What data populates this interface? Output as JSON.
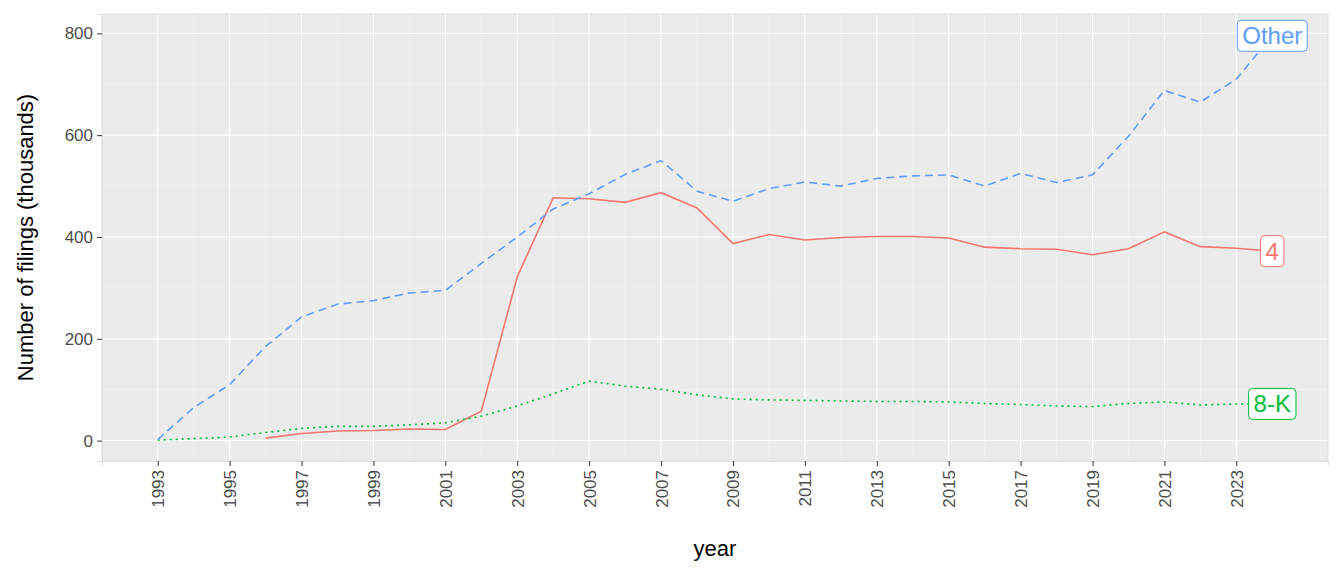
{
  "chart_data": {
    "type": "line",
    "x_label": "year",
    "y_label": "Number of filings (thousands)",
    "x": [
      1993,
      1994,
      1995,
      1996,
      1997,
      1998,
      1999,
      2000,
      2001,
      2002,
      2003,
      2004,
      2005,
      2006,
      2007,
      2008,
      2009,
      2010,
      2011,
      2012,
      2013,
      2014,
      2015,
      2016,
      2017,
      2018,
      2019,
      2020,
      2021,
      2022,
      2023,
      2024
    ],
    "xlim": [
      1991.45,
      2025.55
    ],
    "xticks": [
      1993,
      1995,
      1997,
      1999,
      2001,
      2003,
      2005,
      2007,
      2009,
      2011,
      2013,
      2015,
      2017,
      2019,
      2021,
      2023
    ],
    "ylim": [
      -40,
      838
    ],
    "yticks": [
      0,
      200,
      400,
      600,
      800
    ],
    "grid": true,
    "series": [
      {
        "name": "4",
        "color": "#F8766D",
        "line_style": "solid",
        "values": [
          null,
          null,
          null,
          5,
          14,
          19,
          20,
          23,
          22,
          58,
          322,
          477,
          475,
          468,
          487,
          457,
          387,
          405,
          394,
          399,
          401,
          401,
          398,
          380,
          377,
          376,
          365,
          377,
          410,
          381,
          378,
          372
        ]
      },
      {
        "name": "8-K",
        "color": "#00BA38",
        "line_style": "dotted",
        "values": [
          1,
          4,
          7,
          16,
          24,
          28,
          28,
          31,
          35,
          48,
          68,
          92,
          117,
          107,
          101,
          90,
          82,
          80,
          79,
          78,
          77,
          77,
          76,
          73,
          71,
          68,
          67,
          73,
          76,
          70,
          72,
          72
        ]
      },
      {
        "name": "Other",
        "color": "#619CFF",
        "line_style": "dashed",
        "values": [
          2,
          65,
          110,
          185,
          243,
          268,
          275,
          290,
          295,
          348,
          400,
          455,
          485,
          523,
          550,
          490,
          470,
          495,
          508,
          500,
          515,
          520,
          522,
          500,
          525,
          507,
          522,
          598,
          688,
          665,
          710,
          795
        ]
      }
    ]
  }
}
